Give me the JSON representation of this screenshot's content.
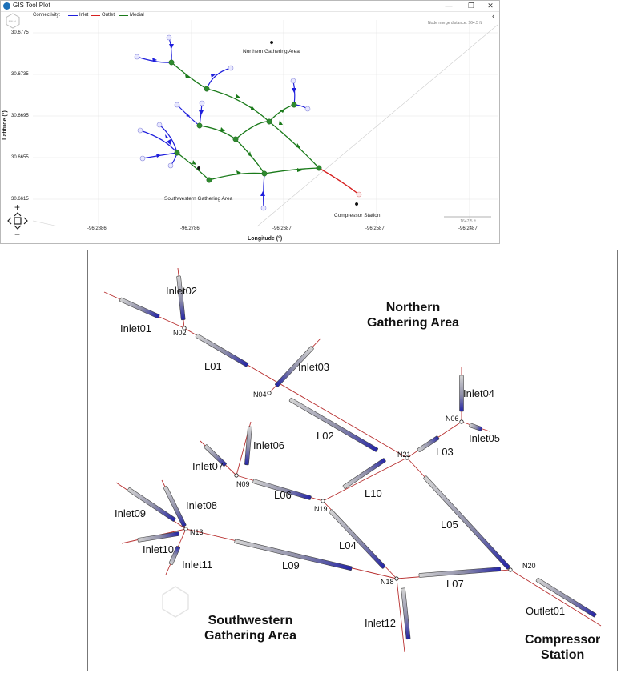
{
  "window": {
    "title": "GIS Tool Plot",
    "buttons": {
      "minimize": "—",
      "maximize": "❐",
      "close": "✕"
    },
    "collapse": "‹"
  },
  "legend": {
    "label": "Connectivity:",
    "items": [
      {
        "name": "Inlet",
        "color": "#1f1fdc"
      },
      {
        "name": "Outlet",
        "color": "#d62020"
      },
      {
        "name": "Medial",
        "color": "#1a7a1a"
      }
    ]
  },
  "map": {
    "logo_text": "NNAL",
    "lat_axis_label": "Latitude (°)",
    "lon_axis_label": "Longitude (°)",
    "merge_distance": "Node merge distance: 164.5 ft",
    "scale_bar": "1647.5 ft",
    "zoom_in": "+",
    "zoom_out": "−",
    "lat_ticks": [
      "30.6775",
      "30.6735",
      "30.6695",
      "30.6655",
      "30.6615"
    ],
    "lon_ticks": [
      "-96.2886",
      "-96.2786",
      "-96.2687",
      "-96.2587",
      "-96.2487"
    ],
    "sites": [
      {
        "name": "Northern Gathering Area"
      },
      {
        "name": "Southwestern Gathering Area"
      },
      {
        "name": "Compressor Station"
      }
    ]
  },
  "schematic": {
    "areas": {
      "northern": [
        "Northern",
        "Gathering Area"
      ],
      "southwestern": [
        "Southwestern",
        "Gathering Area"
      ],
      "compressor": [
        "Compressor",
        "Station"
      ]
    },
    "nodes": [
      "N02",
      "N04",
      "N06",
      "N09",
      "N13",
      "N18",
      "N19",
      "N20",
      "N21"
    ],
    "pipes": [
      {
        "name": "Inlet01"
      },
      {
        "name": "Inlet02"
      },
      {
        "name": "Inlet03"
      },
      {
        "name": "Inlet04"
      },
      {
        "name": "Inlet05"
      },
      {
        "name": "Inlet06"
      },
      {
        "name": "Inlet07"
      },
      {
        "name": "Inlet08"
      },
      {
        "name": "Inlet09"
      },
      {
        "name": "Inlet10"
      },
      {
        "name": "Inlet11"
      },
      {
        "name": "Inlet12"
      },
      {
        "name": "L01"
      },
      {
        "name": "L02"
      },
      {
        "name": "L03"
      },
      {
        "name": "L04"
      },
      {
        "name": "L05"
      },
      {
        "name": "L06"
      },
      {
        "name": "L07"
      },
      {
        "name": "L09"
      },
      {
        "name": "L10"
      },
      {
        "name": "Outlet01"
      }
    ]
  }
}
